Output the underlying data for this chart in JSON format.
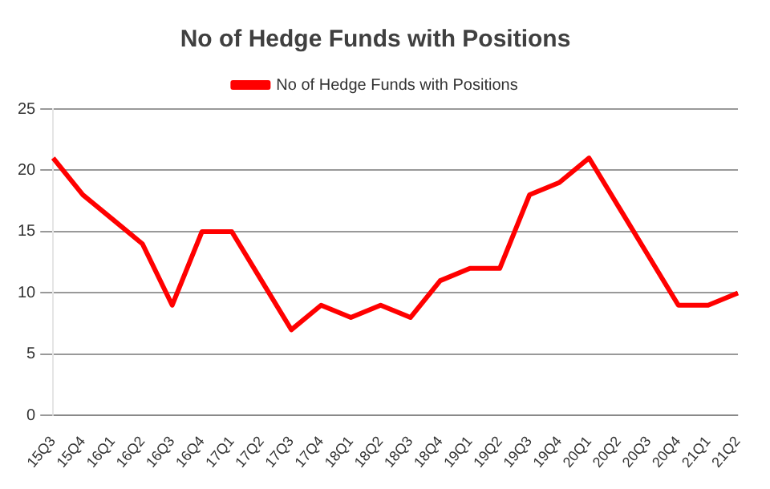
{
  "chart_data": {
    "type": "line",
    "title": "No of Hedge Funds with Positions",
    "categories": [
      "15Q3",
      "15Q4",
      "16Q1",
      "16Q2",
      "16Q3",
      "16Q4",
      "17Q1",
      "17Q2",
      "17Q3",
      "17Q4",
      "18Q1",
      "18Q2",
      "18Q3",
      "18Q4",
      "19Q1",
      "19Q2",
      "19Q3",
      "19Q4",
      "20Q1",
      "20Q2",
      "20Q3",
      "20Q4",
      "21Q1",
      "21Q2"
    ],
    "series": [
      {
        "name": "No of Hedge Funds with Positions",
        "color": "#ff0000",
        "values": [
          21,
          18,
          16,
          14,
          9,
          15,
          15,
          11,
          7,
          9,
          8,
          9,
          8,
          11,
          12,
          12,
          18,
          19,
          21,
          17,
          13,
          9,
          9,
          10
        ]
      }
    ],
    "ylim": [
      0,
      25
    ],
    "yticks": [
      0,
      5,
      10,
      15,
      20,
      25
    ],
    "grid": "y",
    "legend": "top",
    "marker": "none",
    "line_style": "solid"
  }
}
